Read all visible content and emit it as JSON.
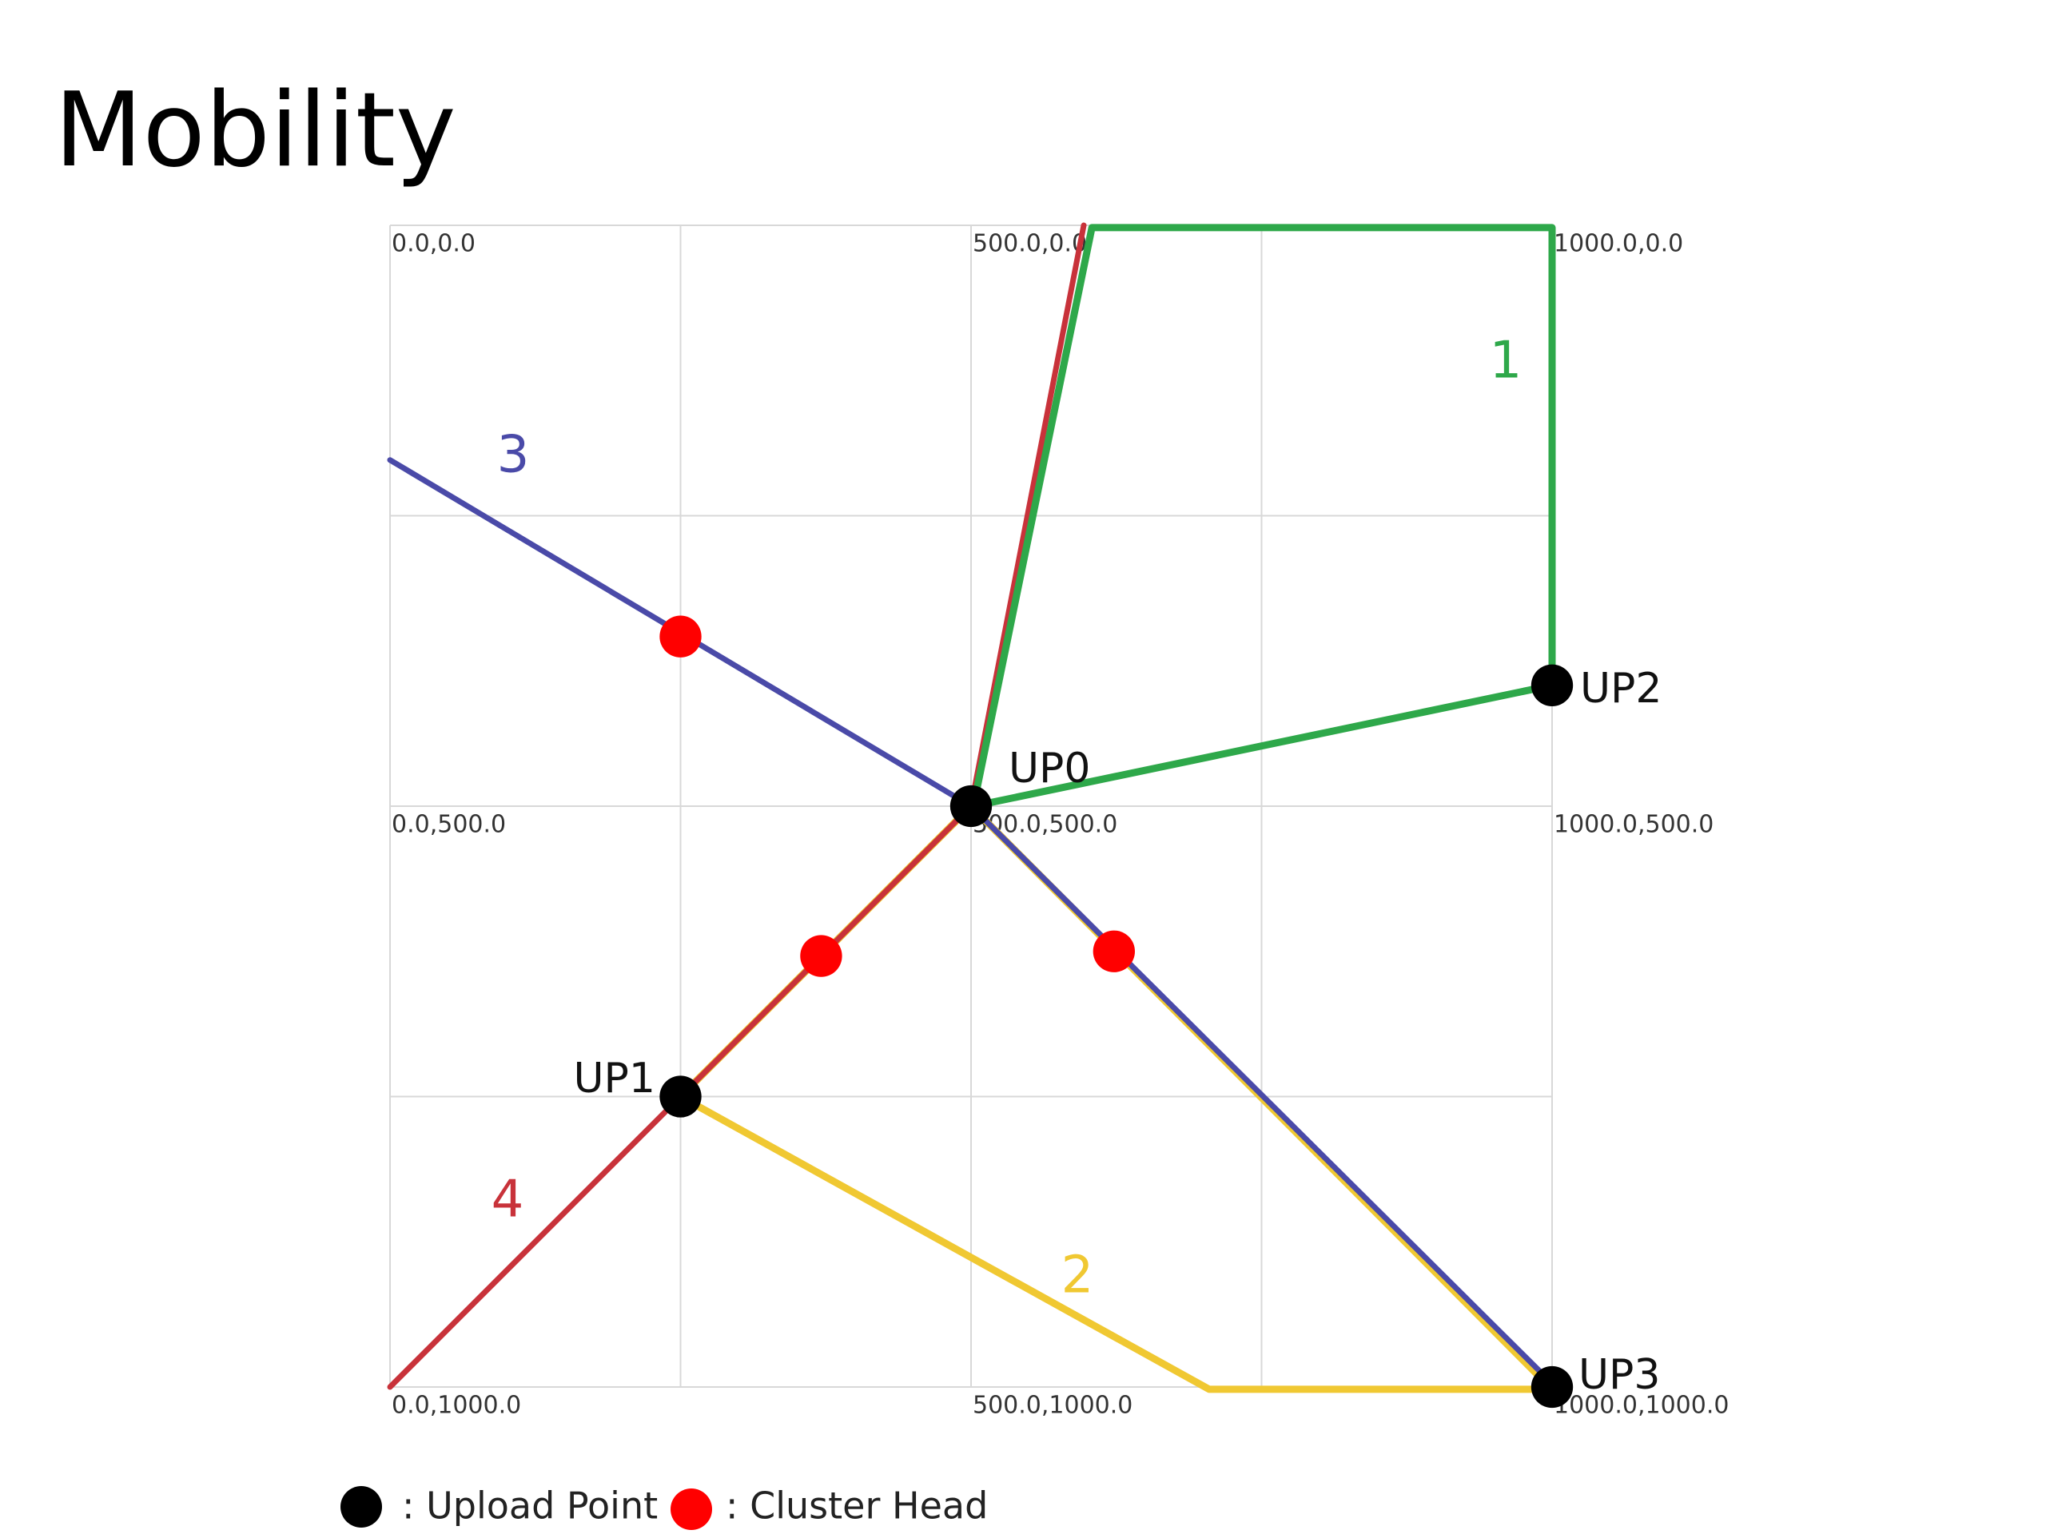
{
  "title": "Mobility",
  "grid_labels": [
    "0.0,0.0",
    "500.0,0.0",
    "1000.0,0.0",
    "0.0,500.0",
    "500.0,500.0",
    "1000.0,500.0",
    "0.0,1000.0",
    "500.0,1000.0",
    "1000.0,1000.0"
  ],
  "upload_points": [
    "UP0",
    "UP1",
    "UP2",
    "UP3"
  ],
  "routes": [
    "1",
    "2",
    "3",
    "4"
  ],
  "legend": [
    ": Upload Point",
    ": Cluster Head"
  ]
}
